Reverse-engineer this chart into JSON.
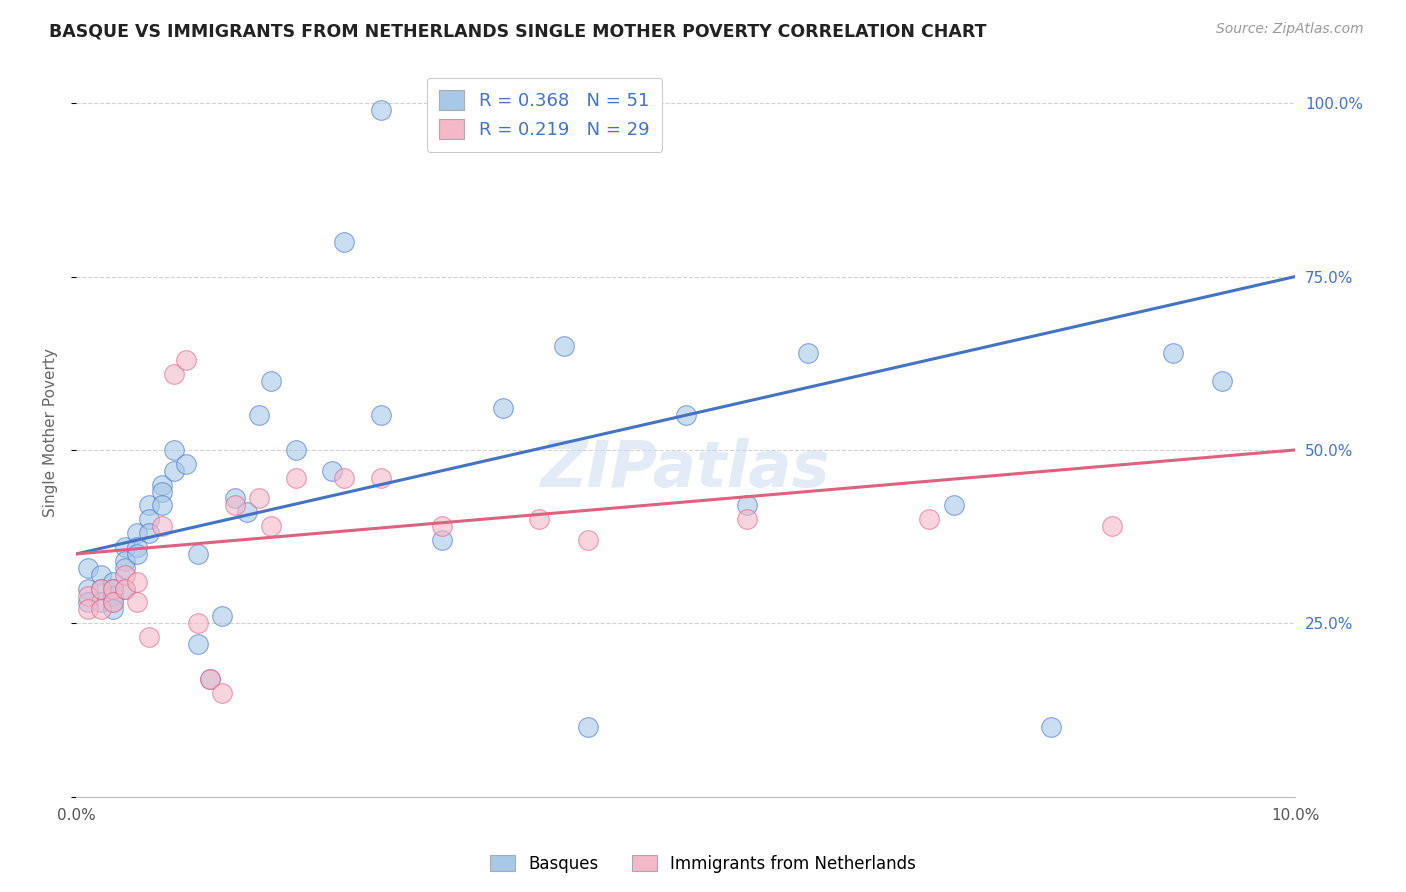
{
  "title": "BASQUE VS IMMIGRANTS FROM NETHERLANDS SINGLE MOTHER POVERTY CORRELATION CHART",
  "source": "Source: ZipAtlas.com",
  "ylabel": "Single Mother Poverty",
  "legend_label1": "Basques",
  "legend_label2": "Immigrants from Netherlands",
  "R1": 0.368,
  "N1": 51,
  "R2": 0.219,
  "N2": 29,
  "color_blue": "#a8c8e8",
  "color_pink": "#f4b8c8",
  "color_line_blue": "#4472c4",
  "color_line_pink": "#e06080",
  "color_title": "#222222",
  "color_source": "#999999",
  "color_axis_right": "#4472c4",
  "color_watermark": "#d0dff0",
  "basque_x": [
    0.001,
    0.001,
    0.001,
    0.002,
    0.002,
    0.002,
    0.003,
    0.003,
    0.003,
    0.003,
    0.003,
    0.004,
    0.004,
    0.004,
    0.004,
    0.005,
    0.005,
    0.005,
    0.006,
    0.006,
    0.006,
    0.007,
    0.007,
    0.007,
    0.008,
    0.008,
    0.009,
    0.01,
    0.01,
    0.011,
    0.012,
    0.013,
    0.014,
    0.015,
    0.016,
    0.018,
    0.021,
    0.022,
    0.025,
    0.025,
    0.03,
    0.035,
    0.04,
    0.042,
    0.05,
    0.055,
    0.06,
    0.072,
    0.08,
    0.09,
    0.094
  ],
  "basque_y": [
    0.33,
    0.3,
    0.28,
    0.32,
    0.3,
    0.28,
    0.31,
    0.3,
    0.29,
    0.28,
    0.27,
    0.36,
    0.34,
    0.33,
    0.3,
    0.38,
    0.36,
    0.35,
    0.42,
    0.4,
    0.38,
    0.45,
    0.44,
    0.42,
    0.5,
    0.47,
    0.48,
    0.35,
    0.22,
    0.17,
    0.26,
    0.43,
    0.41,
    0.55,
    0.6,
    0.5,
    0.47,
    0.8,
    0.55,
    0.99,
    0.37,
    0.56,
    0.65,
    0.1,
    0.55,
    0.42,
    0.64,
    0.42,
    0.1,
    0.64,
    0.6
  ],
  "netherlands_x": [
    0.001,
    0.001,
    0.002,
    0.002,
    0.003,
    0.003,
    0.004,
    0.004,
    0.005,
    0.005,
    0.006,
    0.007,
    0.008,
    0.009,
    0.01,
    0.011,
    0.012,
    0.013,
    0.015,
    0.016,
    0.018,
    0.022,
    0.025,
    0.03,
    0.038,
    0.042,
    0.055,
    0.07,
    0.085
  ],
  "netherlands_y": [
    0.29,
    0.27,
    0.3,
    0.27,
    0.3,
    0.28,
    0.32,
    0.3,
    0.31,
    0.28,
    0.23,
    0.39,
    0.61,
    0.63,
    0.25,
    0.17,
    0.15,
    0.42,
    0.43,
    0.39,
    0.46,
    0.46,
    0.46,
    0.39,
    0.4,
    0.37,
    0.4,
    0.4,
    0.39
  ],
  "xmin": 0.0,
  "xmax": 0.1,
  "ymin": 0.0,
  "ymax": 1.05,
  "line_blue_y0": 0.35,
  "line_blue_y1": 0.75,
  "line_pink_y0": 0.35,
  "line_pink_y1": 0.5
}
